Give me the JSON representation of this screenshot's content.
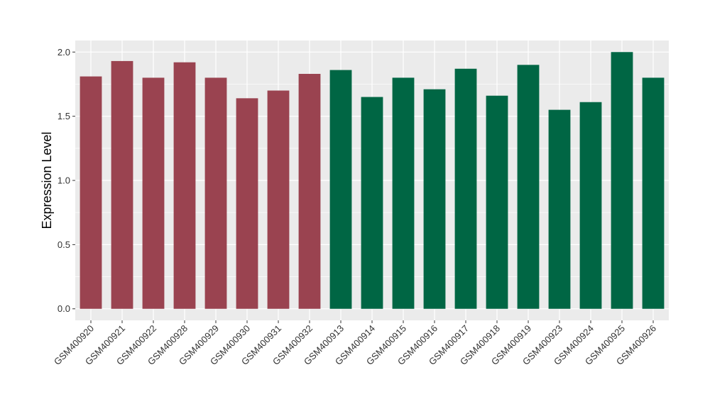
{
  "chart_data": {
    "type": "bar",
    "title": "",
    "xlabel": "",
    "ylabel": "Expression Level",
    "ylim": [
      -0.09,
      2.09
    ],
    "yticks": [
      0.0,
      0.5,
      1.0,
      1.5,
      2.0
    ],
    "ytick_labels": [
      "0.0",
      "0.5",
      "1.0",
      "1.5",
      "2.0"
    ],
    "grid": true,
    "legend": "none",
    "categories": [
      "GSM400920",
      "GSM400921",
      "GSM400922",
      "GSM400928",
      "GSM400929",
      "GSM400930",
      "GSM400931",
      "GSM400932",
      "GSM400913",
      "GSM400914",
      "GSM400915",
      "GSM400916",
      "GSM400917",
      "GSM400918",
      "GSM400919",
      "GSM400923",
      "GSM400924",
      "GSM400925",
      "GSM400926"
    ],
    "values": [
      1.81,
      1.93,
      1.8,
      1.92,
      1.8,
      1.64,
      1.7,
      1.83,
      1.86,
      1.65,
      1.8,
      1.71,
      1.87,
      1.66,
      1.9,
      1.55,
      1.61,
      2.0,
      1.8
    ],
    "bar_colors": [
      "#9a4350",
      "#9a4350",
      "#9a4350",
      "#9a4350",
      "#9a4350",
      "#9a4350",
      "#9a4350",
      "#9a4350",
      "#006644",
      "#006644",
      "#006644",
      "#006644",
      "#006644",
      "#006644",
      "#006644",
      "#006644",
      "#006644",
      "#006644",
      "#006644"
    ],
    "panel_background": "#ebebeb",
    "grid_color": "#ffffff"
  }
}
